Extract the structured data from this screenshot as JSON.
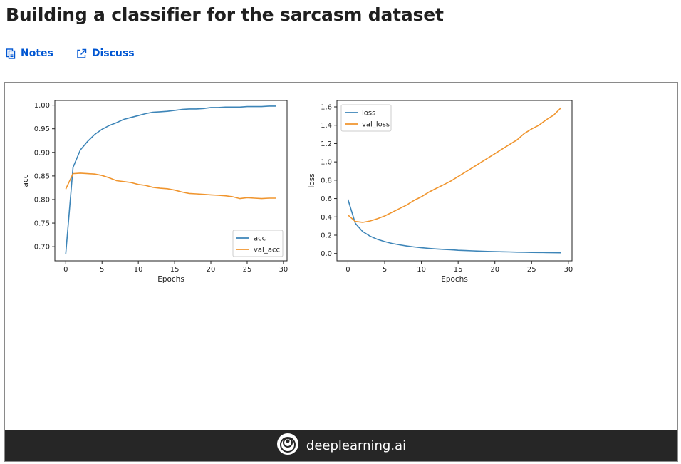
{
  "page": {
    "title": "Building a classifier for the sarcasm dataset",
    "links": [
      {
        "label": "Notes",
        "icon": "notes-icon"
      },
      {
        "label": "Discuss",
        "icon": "external-link-icon"
      }
    ]
  },
  "footer": {
    "brand": "deeplearning.ai",
    "logo_icon": "deeplearning-logo-icon"
  },
  "colors": {
    "link": "#0056d2",
    "series_blue": "#3d85b8",
    "series_orange": "#f0952e",
    "footer_bg": "#262626"
  },
  "chart_data": [
    {
      "type": "line",
      "xlabel": "Epochs",
      "ylabel": "acc",
      "xlim": [
        -1.5,
        30.5
      ],
      "ylim": [
        0.67,
        1.01
      ],
      "xticks": [
        0,
        5,
        10,
        15,
        20,
        25,
        30
      ],
      "yticks": [
        0.7,
        0.75,
        0.8,
        0.85,
        0.9,
        0.95,
        1.0
      ],
      "ytick_labels": [
        "0.70",
        "0.75",
        "0.80",
        "0.85",
        "0.90",
        "0.95",
        "1.00"
      ],
      "legend": "bottom-right",
      "x": [
        0,
        1,
        2,
        3,
        4,
        5,
        6,
        7,
        8,
        9,
        10,
        11,
        12,
        13,
        14,
        15,
        16,
        17,
        18,
        19,
        20,
        21,
        22,
        23,
        24,
        25,
        26,
        27,
        28,
        29
      ],
      "series": [
        {
          "name": "acc",
          "color": "#3d85b8",
          "values": [
            0.685,
            0.868,
            0.905,
            0.923,
            0.938,
            0.949,
            0.957,
            0.963,
            0.97,
            0.974,
            0.978,
            0.982,
            0.985,
            0.986,
            0.987,
            0.989,
            0.991,
            0.992,
            0.992,
            0.993,
            0.995,
            0.995,
            0.996,
            0.996,
            0.996,
            0.997,
            0.997,
            0.997,
            0.998,
            0.998
          ]
        },
        {
          "name": "val_acc",
          "color": "#f0952e",
          "values": [
            0.822,
            0.855,
            0.856,
            0.855,
            0.854,
            0.851,
            0.846,
            0.84,
            0.838,
            0.836,
            0.832,
            0.83,
            0.826,
            0.824,
            0.823,
            0.82,
            0.816,
            0.813,
            0.812,
            0.811,
            0.81,
            0.809,
            0.808,
            0.806,
            0.802,
            0.804,
            0.803,
            0.802,
            0.803,
            0.803
          ]
        }
      ]
    },
    {
      "type": "line",
      "xlabel": "Epochs",
      "ylabel": "loss",
      "xlim": [
        -1.5,
        30.5
      ],
      "ylim": [
        -0.08,
        1.67
      ],
      "xticks": [
        0,
        5,
        10,
        15,
        20,
        25,
        30
      ],
      "yticks": [
        0.0,
        0.2,
        0.4,
        0.6,
        0.8,
        1.0,
        1.2,
        1.4,
        1.6
      ],
      "ytick_labels": [
        "0.0",
        "0.2",
        "0.4",
        "0.6",
        "0.8",
        "1.0",
        "1.2",
        "1.4",
        "1.6"
      ],
      "legend": "top-left",
      "x": [
        0,
        1,
        2,
        3,
        4,
        5,
        6,
        7,
        8,
        9,
        10,
        11,
        12,
        13,
        14,
        15,
        16,
        17,
        18,
        19,
        20,
        21,
        22,
        23,
        24,
        25,
        26,
        27,
        28,
        29
      ],
      "series": [
        {
          "name": "loss",
          "color": "#3d85b8",
          "values": [
            0.59,
            0.33,
            0.24,
            0.19,
            0.155,
            0.13,
            0.11,
            0.095,
            0.082,
            0.072,
            0.063,
            0.056,
            0.05,
            0.045,
            0.041,
            0.035,
            0.032,
            0.029,
            0.026,
            0.023,
            0.021,
            0.019,
            0.017,
            0.015,
            0.014,
            0.012,
            0.011,
            0.01,
            0.009,
            0.008
          ]
        },
        {
          "name": "val_loss",
          "color": "#f0952e",
          "values": [
            0.42,
            0.35,
            0.34,
            0.355,
            0.38,
            0.41,
            0.45,
            0.49,
            0.53,
            0.58,
            0.62,
            0.67,
            0.71,
            0.75,
            0.79,
            0.84,
            0.89,
            0.94,
            0.99,
            1.04,
            1.09,
            1.14,
            1.19,
            1.24,
            1.31,
            1.36,
            1.4,
            1.46,
            1.51,
            1.59
          ]
        }
      ]
    }
  ]
}
